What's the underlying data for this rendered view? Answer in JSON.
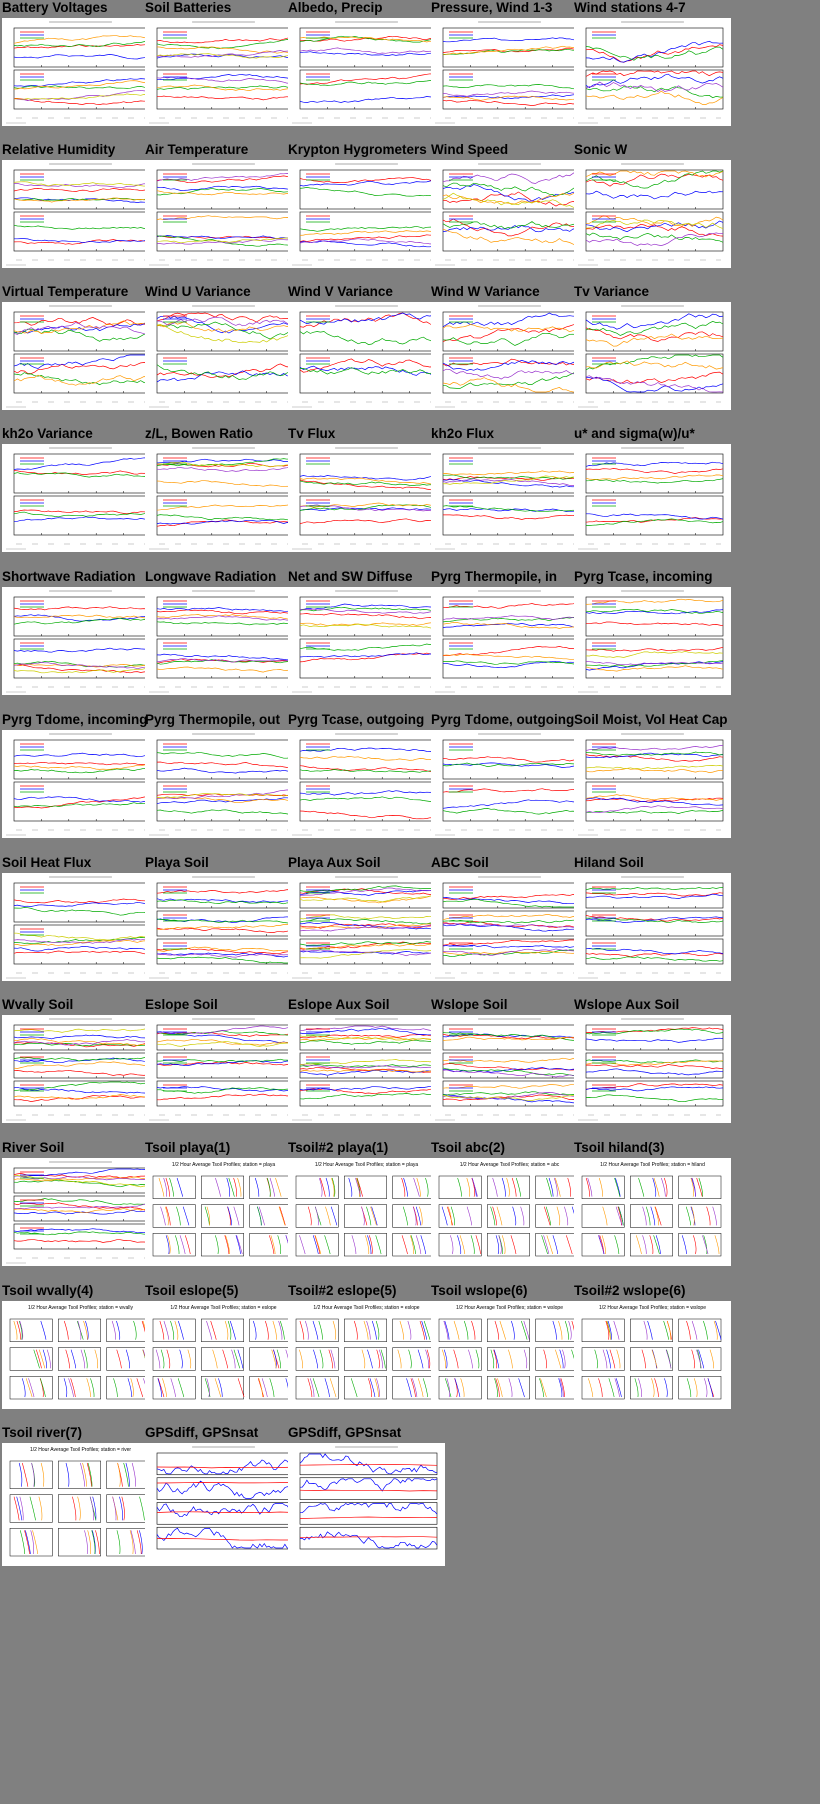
{
  "rows": [
    [
      "Battery Voltages",
      "Soil Batteries",
      "Albedo, Precip",
      "Pressure, Wind 1-3",
      "Wind stations 4-7"
    ],
    [
      "Relative Humidity",
      "Air Temperature",
      "Krypton Hygrometers",
      "Wind Speed",
      "Sonic W"
    ],
    [
      "Virtual Temperature",
      "Wind U Variance",
      "Wind V Variance",
      "Wind W Variance",
      "Tv Variance"
    ],
    [
      "kh2o Variance",
      "z/L, Bowen Ratio",
      "Tv Flux",
      "kh2o Flux",
      "u* and sigma(w)/u*"
    ],
    [
      "Shortwave Radiation",
      "Longwave Radiation",
      "Net and SW Diffuse",
      "Pyrg Thermopile, in",
      "Pyrg Tcase, incoming"
    ],
    [
      "Pyrg Tdome, incoming",
      "Pyrg Thermopile, out",
      "Pyrg Tcase, outgoing",
      "Pyrg Tdome, outgoing",
      "Soil Moist, Vol Heat Cap"
    ],
    [
      "Soil Heat Flux",
      "Playa Soil",
      "Playa Aux Soil",
      "ABC Soil",
      "Hiland Soil"
    ],
    [
      "Wvally Soil",
      "Eslope Soil",
      "Eslope Aux Soil",
      "Wslope Soil",
      "Wslope Aux Soil"
    ],
    [
      "River Soil",
      "Tsoil playa(1)",
      "Tsoil#2 playa(1)",
      "Tsoil abc(2)",
      "Tsoil hiland(3)"
    ],
    [
      "Tsoil wvally(4)",
      "Tsoil eslope(5)",
      "Tsoil#2 eslope(5)",
      "Tsoil wslope(6)",
      "Tsoil#2 wslope(6)"
    ],
    [
      "Tsoil river(7)",
      "GPSdiff, GPSnsat",
      "GPSdiff, GPSnsat"
    ]
  ],
  "profile_headers": {
    "8": [
      "",
      "1/2 Hour Average Tsoil Profiles; station = playa",
      "1/2 Hour Average Tsoil Profiles; station = playa",
      "1/2 Hour Average Tsoil Profiles; station = abc",
      "1/2 Hour Average Tsoil Profiles; station = hiland"
    ],
    "9": [
      "1/2 Hour Average Tsoil Profiles; station = wvally",
      "1/2 Hour Average Tsoil Profiles; station = eslope",
      "1/2 Hour Average Tsoil Profiles; station = eslope",
      "1/2 Hour Average Tsoil Profiles; station = wslope",
      "1/2 Hour Average Tsoil Profiles; station = wslope"
    ],
    "10": [
      "1/2 Hour Average Tsoil Profiles; station = river",
      "",
      ""
    ]
  },
  "colors": {
    "background": "#808080",
    "thumb_bg": "#ffffff",
    "series": [
      "#ff0000",
      "#0000ff",
      "#00aa00",
      "#ff9900",
      "#9933cc",
      "#cccc00",
      "#00aaaa",
      "#ff00ff",
      "#66cc33",
      "#996633"
    ]
  }
}
